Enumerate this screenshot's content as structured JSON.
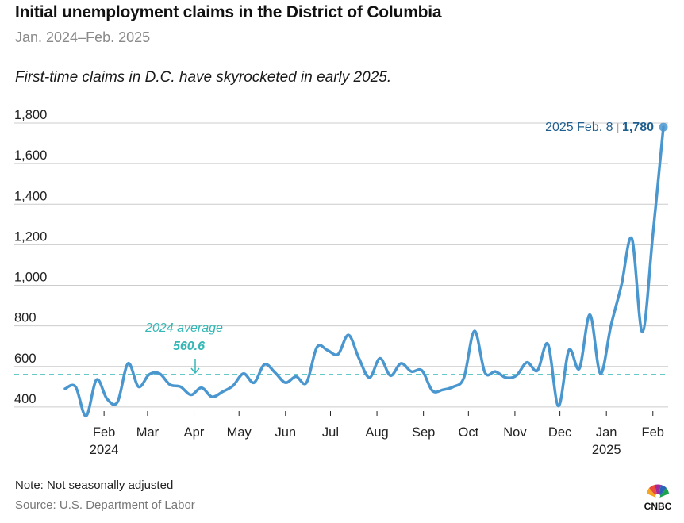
{
  "header": {
    "title": "Initial unemployment claims in the District of Columbia",
    "subtitle": "Jan. 2024–Feb. 2025",
    "dek": "First-time claims in D.C. have skyrocketed in early 2025."
  },
  "footer": {
    "note": "Note: Not seasonally adjusted",
    "source": "Source: U.S. Department of Labor",
    "logo_text": "CNBC"
  },
  "colors": {
    "line": "#4a97d0",
    "average": "#35b8b5",
    "grid": "#cccccc",
    "last_label": "#1f5f8f"
  },
  "chart_data": {
    "type": "line",
    "title": "Initial unemployment claims in the District of Columbia",
    "subtitle": "Jan. 2024–Feb. 2025",
    "ylim": [
      380,
      1800
    ],
    "yticks": [
      {
        "value": 400,
        "label": "400"
      },
      {
        "value": 600,
        "label": "600"
      },
      {
        "value": 800,
        "label": "800"
      },
      {
        "value": 1000,
        "label": "1,000"
      },
      {
        "value": 1200,
        "label": "1,200"
      },
      {
        "value": 1400,
        "label": "1,400"
      },
      {
        "value": 1600,
        "label": "1,600"
      },
      {
        "value": 1800,
        "label": "1,800"
      }
    ],
    "grid": true,
    "xlim": [
      "2024-01-06",
      "2025-02-08"
    ],
    "xticks": [
      {
        "date": "2024-02-01",
        "label": "Feb",
        "year": "2024"
      },
      {
        "date": "2024-03-01",
        "label": "Mar"
      },
      {
        "date": "2024-04-01",
        "label": "Apr"
      },
      {
        "date": "2024-05-01",
        "label": "May"
      },
      {
        "date": "2024-06-01",
        "label": "Jun"
      },
      {
        "date": "2024-07-01",
        "label": "Jul"
      },
      {
        "date": "2024-08-01",
        "label": "Aug"
      },
      {
        "date": "2024-09-01",
        "label": "Sep"
      },
      {
        "date": "2024-10-01",
        "label": "Oct"
      },
      {
        "date": "2024-11-01",
        "label": "Nov"
      },
      {
        "date": "2024-12-01",
        "label": "Dec"
      },
      {
        "date": "2025-01-01",
        "label": "Jan",
        "year": "2025"
      },
      {
        "date": "2025-02-01",
        "label": "Feb"
      }
    ],
    "series": [
      {
        "x": [
          "2024-01-06",
          "2024-01-13",
          "2024-01-20",
          "2024-01-27",
          "2024-02-03",
          "2024-02-10",
          "2024-02-17",
          "2024-02-24",
          "2024-03-02",
          "2024-03-09",
          "2024-03-16",
          "2024-03-23",
          "2024-03-30",
          "2024-04-06",
          "2024-04-13",
          "2024-04-20",
          "2024-04-27",
          "2024-05-04",
          "2024-05-11",
          "2024-05-18",
          "2024-05-25",
          "2024-06-01",
          "2024-06-08",
          "2024-06-15",
          "2024-06-22",
          "2024-06-29",
          "2024-07-06",
          "2024-07-13",
          "2024-07-20",
          "2024-07-27",
          "2024-08-03",
          "2024-08-10",
          "2024-08-17",
          "2024-08-24",
          "2024-08-31",
          "2024-09-07",
          "2024-09-14",
          "2024-09-21",
          "2024-09-28",
          "2024-10-05",
          "2024-10-12",
          "2024-10-19",
          "2024-10-26",
          "2024-11-02",
          "2024-11-09",
          "2024-11-16",
          "2024-11-23",
          "2024-11-30",
          "2024-12-07",
          "2024-12-14",
          "2024-12-21",
          "2024-12-28",
          "2025-01-04",
          "2025-01-11",
          "2025-01-18",
          "2025-01-25",
          "2025-02-01",
          "2025-02-08"
        ],
        "values": [
          490,
          500,
          355,
          535,
          440,
          425,
          615,
          500,
          560,
          565,
          510,
          500,
          460,
          495,
          450,
          475,
          505,
          565,
          520,
          610,
          570,
          520,
          550,
          520,
          695,
          680,
          660,
          755,
          640,
          545,
          640,
          555,
          615,
          575,
          580,
          480,
          485,
          500,
          545,
          775,
          570,
          575,
          545,
          555,
          620,
          580,
          710,
          405,
          680,
          590,
          855,
          565,
          800,
          1000,
          1230,
          770,
          1250,
          1780
        ]
      }
    ],
    "reference_lines": [
      {
        "value": 560.6,
        "label": "2024 average",
        "value_label": "560.6"
      }
    ],
    "annotations": [
      {
        "date_label": "2025 Feb. 8",
        "value_label": "1,780",
        "value": 1780
      }
    ]
  }
}
